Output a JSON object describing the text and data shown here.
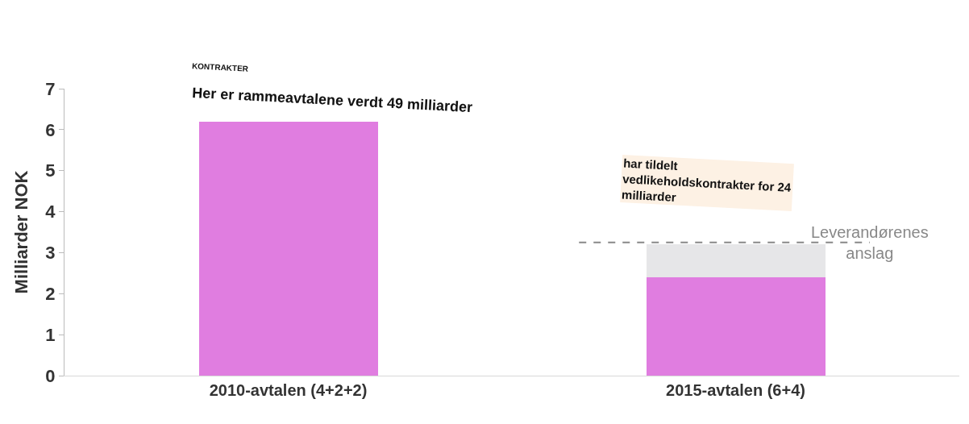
{
  "chart_data": {
    "type": "bar",
    "stacked": true,
    "categories": [
      "2010-avtalen (4+2+2)",
      "2015-avtalen (6+4)"
    ],
    "series": [
      {
        "color": "#e07de0",
        "values": [
          6.2,
          2.4
        ]
      },
      {
        "color": "#e6e6e8",
        "values": [
          null,
          0.8
        ]
      }
    ],
    "ylabel": "Milliarder NOK",
    "ylim": [
      0,
      7
    ],
    "yticks": [
      0,
      1,
      2,
      3,
      4,
      5,
      6,
      7
    ],
    "ref_lines": [
      {
        "axis": "y",
        "value": 3.25,
        "label": "Leverandørenes anslag",
        "color": "#888888",
        "line_style": "dashed"
      }
    ],
    "annotations": [
      "KONTRAKTER",
      "Her er rammeavtalene verdt 49 milliarder",
      "har tildelt vedlikeholdskontrakter for 24 milliarder"
    ],
    "legend": false
  }
}
